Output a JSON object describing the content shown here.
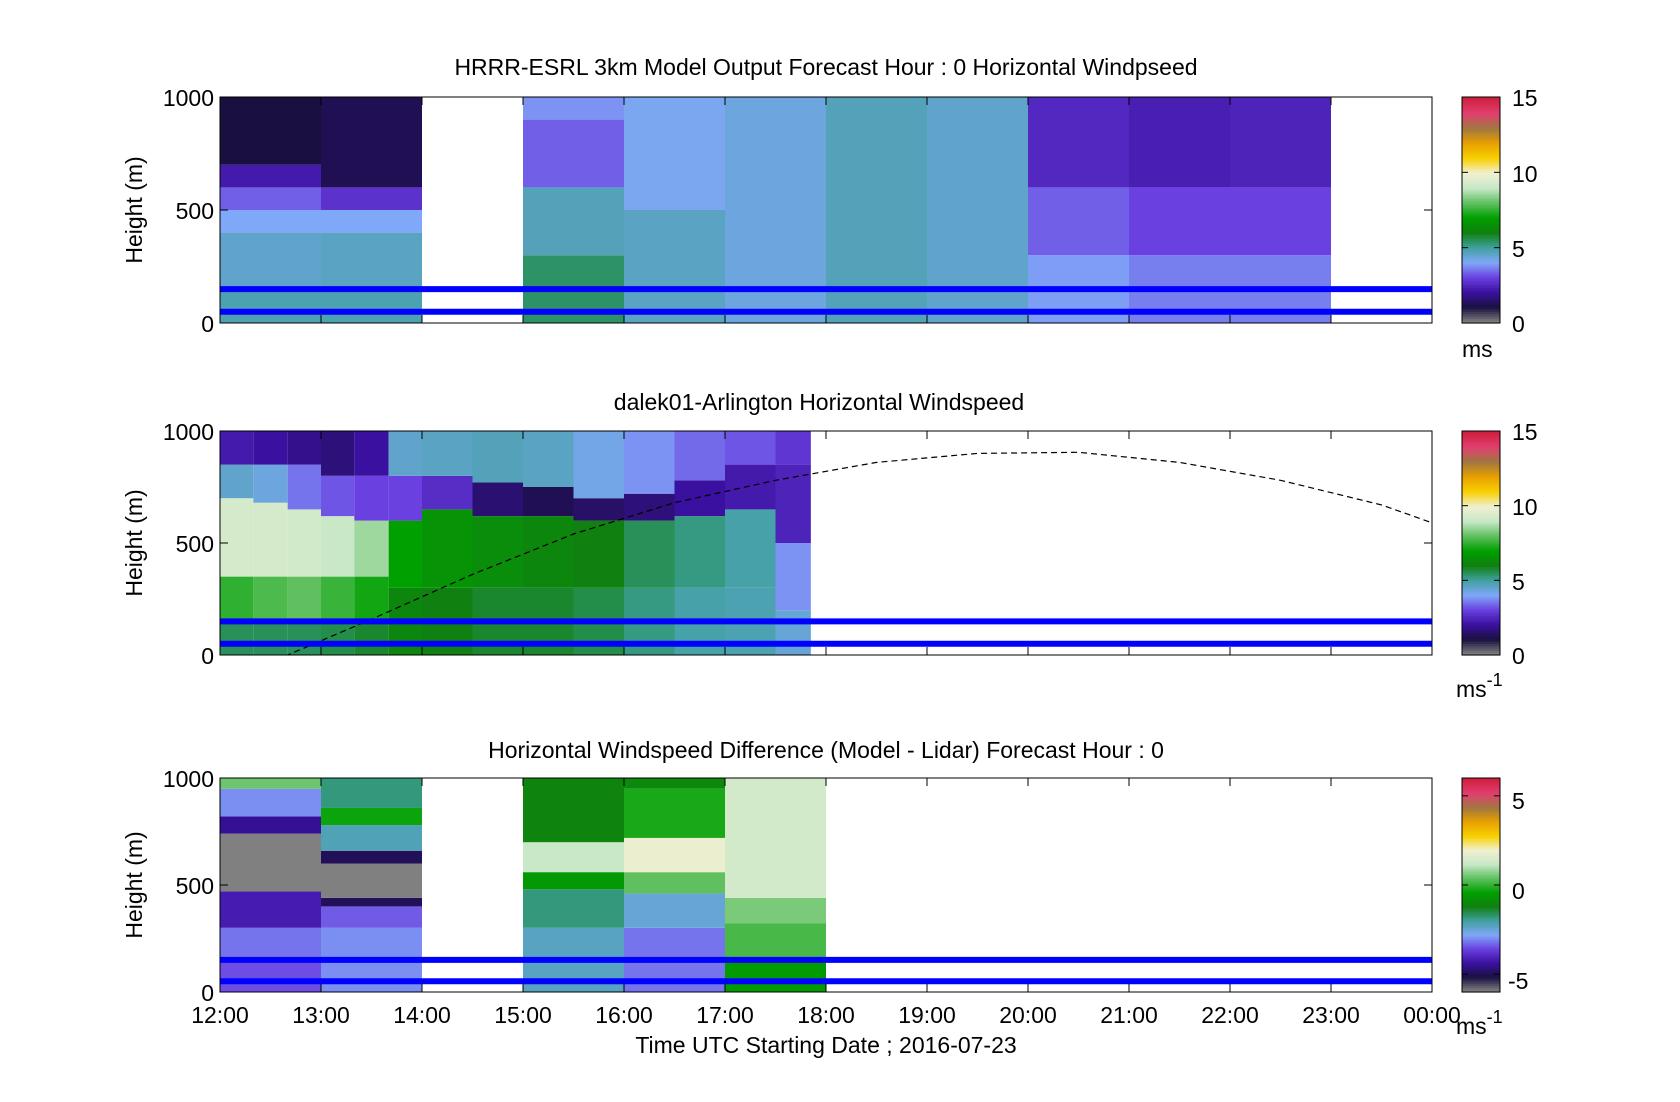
{
  "figure": {
    "xlabel": "Time UTC  Starting Date ; 2016-07-23",
    "x_ticks": [
      "12:00",
      "13:00",
      "14:00",
      "15:00",
      "16:00",
      "17:00",
      "18:00",
      "19:00",
      "20:00",
      "21:00",
      "22:00",
      "23:00",
      "00:00"
    ],
    "y_ticks": [
      "0",
      "500",
      "1000"
    ]
  },
  "colors": {
    "reference_lines": "#0000ff",
    "colormap": [
      "#808080",
      "#1a1040",
      "#3a10a0",
      "#6a40e0",
      "#80a8f8",
      "#40a0a0",
      "#108010",
      "#00a000",
      "#60c060",
      "#c8e8c8",
      "#f0f0d0",
      "#f8d000",
      "#e8a000",
      "#a07840",
      "#e04070",
      "#d02040"
    ]
  },
  "chart_data": [
    {
      "type": "heatmap",
      "title": "HRRR-ESRL 3km Model Output   Forecast Hour : 0 Horizontal Windpseed",
      "ylabel": "Height (m)",
      "xlabel": "",
      "x_range_hours": [
        12,
        24
      ],
      "ylim": [
        0,
        1000
      ],
      "colorbar": {
        "ticks": [
          "0",
          "5",
          "10",
          "15"
        ],
        "range": [
          0,
          15
        ],
        "unit": "ms"
      },
      "reference_heights_m": [
        150,
        50
      ],
      "columns": [
        {
          "start": 12,
          "end": 13,
          "bins": [
            {
              "bottom": 0,
              "top": 150,
              "value": 4.8
            },
            {
              "bottom": 150,
              "top": 400,
              "value": 4.5
            },
            {
              "bottom": 400,
              "top": 500,
              "value": 4.0
            },
            {
              "bottom": 500,
              "top": 600,
              "value": 3.3
            },
            {
              "bottom": 600,
              "top": 700,
              "value": 2.2
            },
            {
              "bottom": 700,
              "top": 1000,
              "value": 1.0
            }
          ]
        },
        {
          "start": 13,
          "end": 14,
          "bins": [
            {
              "bottom": 0,
              "top": 150,
              "value": 4.8
            },
            {
              "bottom": 150,
              "top": 400,
              "value": 4.6
            },
            {
              "bottom": 400,
              "top": 500,
              "value": 4.0
            },
            {
              "bottom": 500,
              "top": 600,
              "value": 2.7
            },
            {
              "bottom": 600,
              "top": 1000,
              "value": 1.2
            }
          ]
        },
        {
          "start": 15,
          "end": 16,
          "bins": [
            {
              "bottom": 0,
              "top": 300,
              "value": 5.4
            },
            {
              "bottom": 300,
              "top": 600,
              "value": 4.7
            },
            {
              "bottom": 600,
              "top": 900,
              "value": 3.3
            },
            {
              "bottom": 900,
              "top": 1000,
              "value": 3.8
            }
          ]
        },
        {
          "start": 16,
          "end": 17,
          "bins": [
            {
              "bottom": 0,
              "top": 500,
              "value": 4.6
            },
            {
              "bottom": 500,
              "top": 1000,
              "value": 4.1
            }
          ]
        },
        {
          "start": 17,
          "end": 18,
          "bins": [
            {
              "bottom": 0,
              "top": 1000,
              "value": 4.3
            }
          ]
        },
        {
          "start": 18,
          "end": 19,
          "bins": [
            {
              "bottom": 0,
              "top": 1000,
              "value": 4.7
            }
          ]
        },
        {
          "start": 19,
          "end": 20,
          "bins": [
            {
              "bottom": 0,
              "top": 1000,
              "value": 4.5
            }
          ]
        },
        {
          "start": 20,
          "end": 21,
          "bins": [
            {
              "bottom": 0,
              "top": 300,
              "value": 3.9
            },
            {
              "bottom": 300,
              "top": 600,
              "value": 3.3
            },
            {
              "bottom": 600,
              "top": 1000,
              "value": 2.5
            }
          ]
        },
        {
          "start": 21,
          "end": 22,
          "bins": [
            {
              "bottom": 0,
              "top": 300,
              "value": 3.6
            },
            {
              "bottom": 300,
              "top": 600,
              "value": 3.0
            },
            {
              "bottom": 600,
              "top": 1000,
              "value": 2.3
            }
          ]
        },
        {
          "start": 22,
          "end": 23,
          "bins": [
            {
              "bottom": 0,
              "top": 300,
              "value": 3.6
            },
            {
              "bottom": 300,
              "top": 600,
              "value": 3.0
            },
            {
              "bottom": 600,
              "top": 1000,
              "value": 2.4
            }
          ]
        }
      ]
    },
    {
      "type": "heatmap",
      "title": "dalek01-Arlington  Horizontal Windspeed",
      "ylabel": "Height (m)",
      "xlabel": "",
      "x_range_hours": [
        12,
        24
      ],
      "ylim": [
        0,
        1000
      ],
      "colorbar": {
        "ticks": [
          "0",
          "5",
          "10",
          "15"
        ],
        "range": [
          0,
          15
        ],
        "unit": "ms",
        "unit_exponent": "-1"
      },
      "reference_heights_m": [
        150,
        50
      ],
      "columns": [
        {
          "start": 12.0,
          "end": 12.33,
          "bins": [
            {
              "bottom": 0,
              "top": 150,
              "value": 5.5
            },
            {
              "bottom": 150,
              "top": 350,
              "value": 7.5
            },
            {
              "bottom": 350,
              "top": 700,
              "value": 9.3
            },
            {
              "bottom": 700,
              "top": 850,
              "value": 4.5
            },
            {
              "bottom": 850,
              "top": 1000,
              "value": 2.2
            }
          ]
        },
        {
          "start": 12.33,
          "end": 12.67,
          "bins": [
            {
              "bottom": 0,
              "top": 150,
              "value": 5.5
            },
            {
              "bottom": 150,
              "top": 350,
              "value": 7.8
            },
            {
              "bottom": 350,
              "top": 680,
              "value": 9.3
            },
            {
              "bottom": 680,
              "top": 850,
              "value": 4.3
            },
            {
              "bottom": 850,
              "top": 1000,
              "value": 2.0
            }
          ]
        },
        {
          "start": 12.67,
          "end": 13.0,
          "bins": [
            {
              "bottom": 0,
              "top": 150,
              "value": 5.5
            },
            {
              "bottom": 150,
              "top": 350,
              "value": 8.0
            },
            {
              "bottom": 350,
              "top": 650,
              "value": 9.2
            },
            {
              "bottom": 650,
              "top": 850,
              "value": 3.5
            },
            {
              "bottom": 850,
              "top": 1000,
              "value": 1.8
            }
          ]
        },
        {
          "start": 13.0,
          "end": 13.33,
          "bins": [
            {
              "bottom": 0,
              "top": 150,
              "value": 5.6
            },
            {
              "bottom": 150,
              "top": 350,
              "value": 7.6
            },
            {
              "bottom": 350,
              "top": 620,
              "value": 9.0
            },
            {
              "bottom": 620,
              "top": 800,
              "value": 3.2
            },
            {
              "bottom": 800,
              "top": 1000,
              "value": 1.6
            }
          ]
        },
        {
          "start": 13.33,
          "end": 13.67,
          "bins": [
            {
              "bottom": 0,
              "top": 150,
              "value": 5.8
            },
            {
              "bottom": 150,
              "top": 350,
              "value": 7.2
            },
            {
              "bottom": 350,
              "top": 600,
              "value": 8.6
            },
            {
              "bottom": 600,
              "top": 800,
              "value": 3.0
            },
            {
              "bottom": 800,
              "top": 1000,
              "value": 2.0
            }
          ]
        },
        {
          "start": 13.67,
          "end": 14.0,
          "bins": [
            {
              "bottom": 0,
              "top": 300,
              "value": 6.2
            },
            {
              "bottom": 300,
              "top": 600,
              "value": 7.0
            },
            {
              "bottom": 600,
              "top": 800,
              "value": 3.0
            },
            {
              "bottom": 800,
              "top": 1000,
              "value": 4.5
            }
          ]
        },
        {
          "start": 14.0,
          "end": 14.5,
          "bins": [
            {
              "bottom": 0,
              "top": 300,
              "value": 6.0
            },
            {
              "bottom": 300,
              "top": 650,
              "value": 6.6
            },
            {
              "bottom": 650,
              "top": 800,
              "value": 2.6
            },
            {
              "bottom": 800,
              "top": 1000,
              "value": 4.6
            }
          ]
        },
        {
          "start": 14.5,
          "end": 15.0,
          "bins": [
            {
              "bottom": 0,
              "top": 300,
              "value": 5.8
            },
            {
              "bottom": 300,
              "top": 620,
              "value": 6.4
            },
            {
              "bottom": 620,
              "top": 770,
              "value": 1.5
            },
            {
              "bottom": 770,
              "top": 1000,
              "value": 4.7
            }
          ]
        },
        {
          "start": 15.0,
          "end": 15.5,
          "bins": [
            {
              "bottom": 0,
              "top": 300,
              "value": 5.8
            },
            {
              "bottom": 300,
              "top": 620,
              "value": 6.2
            },
            {
              "bottom": 620,
              "top": 750,
              "value": 1.2
            },
            {
              "bottom": 750,
              "top": 1000,
              "value": 4.6
            }
          ]
        },
        {
          "start": 15.5,
          "end": 16.0,
          "bins": [
            {
              "bottom": 0,
              "top": 300,
              "value": 5.6
            },
            {
              "bottom": 300,
              "top": 600,
              "value": 6.0
            },
            {
              "bottom": 600,
              "top": 700,
              "value": 1.4
            },
            {
              "bottom": 700,
              "top": 1000,
              "value": 4.2
            }
          ]
        },
        {
          "start": 16.0,
          "end": 16.5,
          "bins": [
            {
              "bottom": 0,
              "top": 300,
              "value": 5.2
            },
            {
              "bottom": 300,
              "top": 600,
              "value": 5.5
            },
            {
              "bottom": 600,
              "top": 720,
              "value": 1.6
            },
            {
              "bottom": 720,
              "top": 1000,
              "value": 3.8
            }
          ]
        },
        {
          "start": 16.5,
          "end": 17.0,
          "bins": [
            {
              "bottom": 0,
              "top": 300,
              "value": 4.9
            },
            {
              "bottom": 300,
              "top": 620,
              "value": 5.2
            },
            {
              "bottom": 620,
              "top": 780,
              "value": 2.0
            },
            {
              "bottom": 780,
              "top": 1000,
              "value": 3.4
            }
          ]
        },
        {
          "start": 17.0,
          "end": 17.5,
          "bins": [
            {
              "bottom": 0,
              "top": 300,
              "value": 4.8
            },
            {
              "bottom": 300,
              "top": 650,
              "value": 4.9
            },
            {
              "bottom": 650,
              "top": 850,
              "value": 2.2
            },
            {
              "bottom": 850,
              "top": 1000,
              "value": 3.2
            }
          ]
        },
        {
          "start": 17.5,
          "end": 17.85,
          "bins": [
            {
              "bottom": 0,
              "top": 200,
              "value": 4.4
            },
            {
              "bottom": 200,
              "top": 500,
              "value": 3.8
            },
            {
              "bottom": 500,
              "top": 850,
              "value": 2.4
            },
            {
              "bottom": 850,
              "top": 1000,
              "value": 2.8
            }
          ]
        }
      ],
      "dashed_curve": [
        {
          "x": 12.0,
          "y": -120
        },
        {
          "x": 12.67,
          "y": 0
        },
        {
          "x": 13.5,
          "y": 160
        },
        {
          "x": 14.5,
          "y": 360
        },
        {
          "x": 15.5,
          "y": 540
        },
        {
          "x": 16.5,
          "y": 680
        },
        {
          "x": 17.5,
          "y": 780
        },
        {
          "x": 18.5,
          "y": 860
        },
        {
          "x": 19.5,
          "y": 900
        },
        {
          "x": 20.5,
          "y": 905
        },
        {
          "x": 21.5,
          "y": 860
        },
        {
          "x": 22.5,
          "y": 780
        },
        {
          "x": 23.5,
          "y": 670
        },
        {
          "x": 24.0,
          "y": 590
        }
      ]
    },
    {
      "type": "heatmap",
      "title": "Horizontal Windspeed Difference (Model - Lidar) Forecast Hour : 0",
      "ylabel": "Height (m)",
      "xlabel": "Time UTC  Starting Date ; 2016-07-23",
      "x_range_hours": [
        12,
        24
      ],
      "ylim": [
        0,
        1000
      ],
      "colorbar": {
        "ticks": [
          "-5",
          "0",
          "5"
        ],
        "tick_values": [
          -5,
          0,
          5
        ],
        "range": [
          -6,
          6
        ],
        "unit": "ms",
        "unit_exponent": "-1"
      },
      "reference_heights_m": [
        150,
        50
      ],
      "columns": [
        {
          "start": 12,
          "end": 13,
          "bins": [
            {
              "bottom": 0,
              "top": 150,
              "value": -3.5
            },
            {
              "bottom": 150,
              "top": 300,
              "value": -3.2
            },
            {
              "bottom": 300,
              "top": 470,
              "value": -4.2
            },
            {
              "bottom": 470,
              "top": 740,
              "value": -6.0
            },
            {
              "bottom": 740,
              "top": 820,
              "value": -4.5
            },
            {
              "bottom": 820,
              "top": 950,
              "value": -3.0
            },
            {
              "bottom": 950,
              "top": 1000,
              "value": 0.5
            }
          ]
        },
        {
          "start": 13,
          "end": 14,
          "bins": [
            {
              "bottom": 0,
              "top": 300,
              "value": -3.0
            },
            {
              "bottom": 300,
              "top": 400,
              "value": -3.4
            },
            {
              "bottom": 400,
              "top": 440,
              "value": -5.0
            },
            {
              "bottom": 440,
              "top": 600,
              "value": -6.0
            },
            {
              "bottom": 600,
              "top": 660,
              "value": -5.0
            },
            {
              "bottom": 660,
              "top": 780,
              "value": -2.2
            },
            {
              "bottom": 780,
              "top": 860,
              "value": -0.3
            },
            {
              "bottom": 860,
              "top": 1000,
              "value": -1.8
            }
          ]
        },
        {
          "start": 15,
          "end": 16,
          "bins": [
            {
              "bottom": 0,
              "top": 300,
              "value": -2.3
            },
            {
              "bottom": 300,
              "top": 480,
              "value": -1.8
            },
            {
              "bottom": 480,
              "top": 560,
              "value": -0.6
            },
            {
              "bottom": 560,
              "top": 700,
              "value": 1.2
            },
            {
              "bottom": 700,
              "top": 1000,
              "value": -1.1
            }
          ]
        },
        {
          "start": 16,
          "end": 17,
          "bins": [
            {
              "bottom": 0,
              "top": 300,
              "value": -3.2
            },
            {
              "bottom": 300,
              "top": 460,
              "value": -2.5
            },
            {
              "bottom": 460,
              "top": 560,
              "value": 0.4
            },
            {
              "bottom": 560,
              "top": 720,
              "value": 1.9
            },
            {
              "bottom": 720,
              "top": 950,
              "value": -0.2
            },
            {
              "bottom": 950,
              "top": 1000,
              "value": -1.0
            }
          ]
        },
        {
          "start": 17,
          "end": 18,
          "bins": [
            {
              "bottom": 0,
              "top": 150,
              "value": -0.5
            },
            {
              "bottom": 150,
              "top": 320,
              "value": 0.2
            },
            {
              "bottom": 320,
              "top": 440,
              "value": 0.6
            },
            {
              "bottom": 440,
              "top": 1000,
              "value": 1.4
            }
          ]
        }
      ]
    }
  ]
}
